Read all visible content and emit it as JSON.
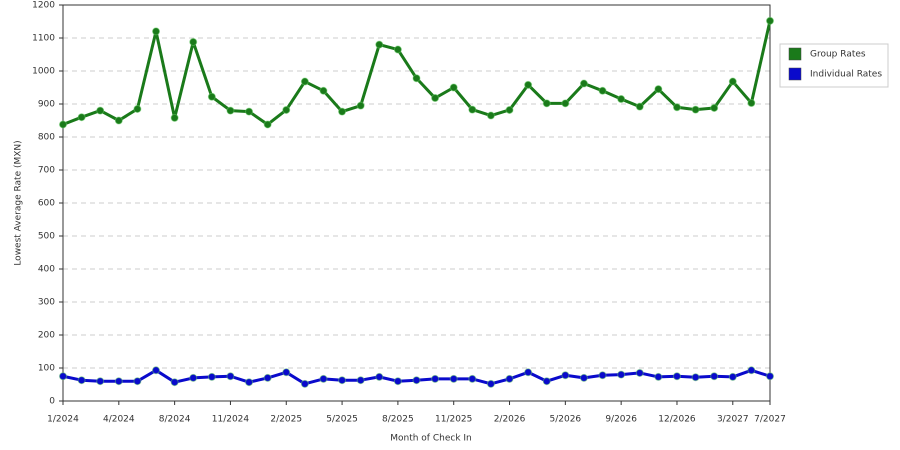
{
  "chart_data": {
    "type": "line",
    "x_label": "Month of Check In",
    "y_label": "Lowest Average Rate (MXN)",
    "categories": [
      "1/2024",
      null,
      null,
      "4/2024",
      null,
      null,
      "8/2024",
      null,
      null,
      "11/2024",
      null,
      null,
      "2/2025",
      null,
      null,
      "5/2025",
      null,
      null,
      "8/2025",
      null,
      null,
      "11/2025",
      null,
      null,
      "2/2026",
      null,
      null,
      "5/2026",
      null,
      null,
      "9/2026",
      null,
      null,
      "12/2026",
      null,
      null,
      "3/2027",
      null,
      "7/2027"
    ],
    "series": [
      {
        "name": "Group Rates",
        "color": "#1a7a1a",
        "values": [
          838,
          860,
          880,
          850,
          885,
          1120,
          858,
          1088,
          922,
          880,
          877,
          838,
          882,
          968,
          940,
          877,
          895,
          1080,
          1065,
          978,
          918,
          950,
          883,
          865,
          882,
          958,
          902,
          902,
          962,
          940,
          915,
          892,
          945,
          890,
          883,
          888,
          968,
          903,
          1152
        ]
      },
      {
        "name": "Individual Rates",
        "color": "#0a0acc",
        "values": [
          75,
          63,
          60,
          60,
          60,
          93,
          57,
          70,
          73,
          75,
          57,
          70,
          87,
          52,
          67,
          63,
          63,
          73,
          60,
          63,
          67,
          67,
          67,
          52,
          67,
          87,
          60,
          78,
          70,
          78,
          80,
          85,
          73,
          75,
          72,
          75,
          73,
          93,
          75
        ]
      }
    ],
    "ylim": [
      0,
      1200
    ],
    "yticks": [
      0,
      100,
      200,
      300,
      400,
      500,
      600,
      700,
      800,
      900,
      1000,
      1100,
      1200
    ],
    "grid": true,
    "legend": "right"
  }
}
